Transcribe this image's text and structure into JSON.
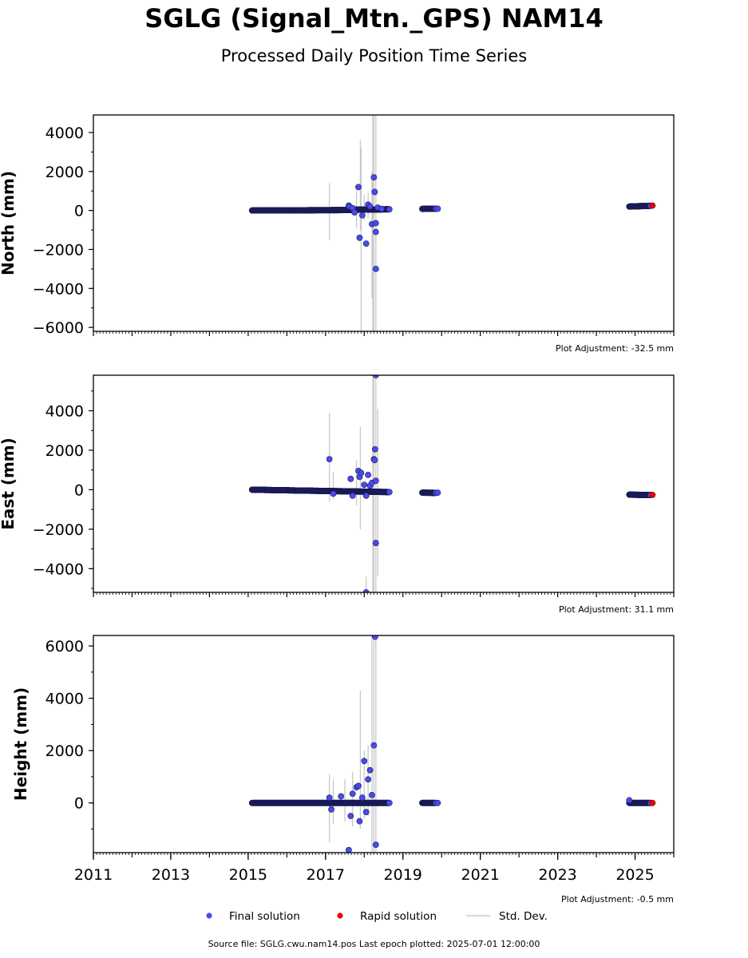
{
  "page": {
    "title": "SGLG (Signal_Mtn._GPS) NAM14",
    "subtitle": "Processed Daily Position Time Series",
    "footer": "Source file: SGLG.cwu.nam14.pos  Last epoch plotted: 2025-07-01 12:00:00"
  },
  "colors": {
    "final": "#4a4aee",
    "final_edge": "#1a1a55",
    "rapid": "#ee0000",
    "stddev": "#c8c8c8",
    "axis": "#000000"
  },
  "chart_data": [
    {
      "type": "scatter",
      "ylabel": "North (mm)",
      "adjustment": "Plot Adjustment: -32.5 mm",
      "xlim": [
        2011,
        2026
      ],
      "ylim": [
        -6200,
        4900
      ],
      "yticks": [
        4000,
        2000,
        0,
        -2000,
        -4000,
        -6000
      ],
      "ytick_labels": [
        "4000",
        "2000",
        "0",
        "−2000",
        "−4000",
        "−6000"
      ],
      "dense_segments": [
        {
          "x0": 2015.1,
          "x1": 2017.5,
          "y0": 0,
          "y1": 20
        },
        {
          "x0": 2017.5,
          "x1": 2018.65,
          "y0": 30,
          "y1": 60
        },
        {
          "x0": 2019.5,
          "x1": 2019.85,
          "y0": 80,
          "y1": 90
        },
        {
          "x0": 2024.85,
          "x1": 2025.4,
          "y0": 200,
          "y1": 240
        }
      ],
      "final_points": [
        [
          2017.6,
          250
        ],
        [
          2017.62,
          200
        ],
        [
          2017.7,
          120
        ],
        [
          2017.75,
          -100
        ],
        [
          2017.85,
          1200
        ],
        [
          2017.88,
          -1400
        ],
        [
          2017.95,
          -250
        ],
        [
          2018.05,
          -1700
        ],
        [
          2018.1,
          300
        ],
        [
          2018.15,
          200
        ],
        [
          2018.2,
          -700
        ],
        [
          2018.25,
          1700
        ],
        [
          2018.27,
          950
        ],
        [
          2018.3,
          -650
        ],
        [
          2018.3,
          -1100
        ],
        [
          2018.3,
          -3000
        ],
        [
          2018.35,
          150
        ],
        [
          2018.45,
          80
        ],
        [
          2019.9,
          90
        ]
      ],
      "rapid_points": [
        [
          2025.45,
          250
        ]
      ],
      "errorbars": [
        [
          2017.1,
          -1500,
          1400
        ],
        [
          2017.8,
          -900,
          1000
        ],
        [
          2017.9,
          -1000,
          3600
        ],
        [
          2017.92,
          -6200,
          3200
        ],
        [
          2018.0,
          -500,
          800
        ],
        [
          2018.1,
          -400,
          900
        ],
        [
          2018.22,
          -6200,
          4900
        ],
        [
          2018.25,
          -6200,
          4900
        ],
        [
          2018.3,
          -6200,
          4900
        ],
        [
          2018.2,
          -4500,
          2000
        ]
      ]
    },
    {
      "type": "scatter",
      "ylabel": "East (mm)",
      "adjustment": "Plot Adjustment: 31.1 mm",
      "xlim": [
        2011,
        2026
      ],
      "ylim": [
        -5200,
        5800
      ],
      "yticks": [
        4000,
        2000,
        0,
        -2000,
        -4000
      ],
      "ytick_labels": [
        "4000",
        "2000",
        "0",
        "−2000",
        "−4000"
      ],
      "dense_segments": [
        {
          "x0": 2015.1,
          "x1": 2016.0,
          "y0": 0,
          "y1": -30
        },
        {
          "x0": 2016.0,
          "x1": 2017.5,
          "y0": -30,
          "y1": -80
        },
        {
          "x0": 2017.5,
          "x1": 2018.65,
          "y0": -80,
          "y1": -120
        },
        {
          "x0": 2019.5,
          "x1": 2019.85,
          "y0": -150,
          "y1": -160
        },
        {
          "x0": 2024.85,
          "x1": 2025.4,
          "y0": -250,
          "y1": -270
        }
      ],
      "final_points": [
        [
          2017.1,
          1550
        ],
        [
          2017.2,
          -200
        ],
        [
          2017.65,
          550
        ],
        [
          2017.7,
          -300
        ],
        [
          2017.85,
          950
        ],
        [
          2017.88,
          650
        ],
        [
          2017.92,
          850
        ],
        [
          2018.0,
          250
        ],
        [
          2018.05,
          -300
        ],
        [
          2018.1,
          750
        ],
        [
          2018.15,
          200
        ],
        [
          2018.2,
          350
        ],
        [
          2018.25,
          1550
        ],
        [
          2018.27,
          1500
        ],
        [
          2018.28,
          2050
        ],
        [
          2018.3,
          5800
        ],
        [
          2018.3,
          450
        ],
        [
          2018.3,
          -2700
        ],
        [
          2018.05,
          -5200
        ],
        [
          2019.9,
          -150
        ]
      ],
      "rapid_points": [
        [
          2025.45,
          -260
        ]
      ],
      "errorbars": [
        [
          2017.1,
          -600,
          3900
        ],
        [
          2017.2,
          -500,
          900
        ],
        [
          2017.8,
          -800,
          1500
        ],
        [
          2017.9,
          -2000,
          3200
        ],
        [
          2018.05,
          -5200,
          -4400
        ],
        [
          2018.22,
          -5200,
          5800
        ],
        [
          2018.25,
          -5200,
          5800
        ],
        [
          2018.3,
          -5200,
          5800
        ],
        [
          2018.35,
          -4400,
          4100
        ]
      ]
    },
    {
      "type": "scatter",
      "ylabel": "Height (mm)",
      "adjustment": "Plot Adjustment: -0.5 mm",
      "xlim": [
        2011,
        2026
      ],
      "ylim": [
        -1900,
        6400
      ],
      "yticks": [
        6000,
        4000,
        2000,
        0
      ],
      "ytick_labels": [
        "6000",
        "4000",
        "2000",
        "0"
      ],
      "xticks": [
        2011,
        2013,
        2015,
        2017,
        2019,
        2021,
        2023,
        2025
      ],
      "xtick_labels": [
        "2011",
        "2013",
        "2015",
        "2017",
        "2019",
        "2021",
        "2023",
        "2025"
      ],
      "dense_segments": [
        {
          "x0": 2015.1,
          "x1": 2018.65,
          "y0": 0,
          "y1": 0
        },
        {
          "x0": 2019.5,
          "x1": 2019.85,
          "y0": 0,
          "y1": 0
        },
        {
          "x0": 2024.85,
          "x1": 2025.4,
          "y0": 0,
          "y1": 0
        }
      ],
      "final_points": [
        [
          2017.1,
          200
        ],
        [
          2017.15,
          -250
        ],
        [
          2017.4,
          250
        ],
        [
          2017.6,
          -1800
        ],
        [
          2017.65,
          -500
        ],
        [
          2017.7,
          350
        ],
        [
          2017.8,
          600
        ],
        [
          2017.85,
          650
        ],
        [
          2017.88,
          -700
        ],
        [
          2017.95,
          200
        ],
        [
          2018.0,
          1600
        ],
        [
          2018.05,
          -350
        ],
        [
          2018.1,
          900
        ],
        [
          2018.15,
          1250
        ],
        [
          2018.2,
          300
        ],
        [
          2018.25,
          2200
        ],
        [
          2018.28,
          6350
        ],
        [
          2018.3,
          -1600
        ],
        [
          2024.85,
          100
        ],
        [
          2019.9,
          0
        ]
      ],
      "rapid_points": [
        [
          2025.45,
          0
        ]
      ],
      "errorbars": [
        [
          2017.1,
          -1500,
          1100
        ],
        [
          2017.2,
          -800,
          900
        ],
        [
          2017.5,
          -700,
          900
        ],
        [
          2017.7,
          -900,
          1200
        ],
        [
          2017.9,
          -1000,
          4300
        ],
        [
          2018.0,
          -600,
          2000
        ],
        [
          2018.1,
          -500,
          2200
        ],
        [
          2018.2,
          -1900,
          6400
        ],
        [
          2018.25,
          -1900,
          6400
        ],
        [
          2018.3,
          -1900,
          6400
        ]
      ]
    }
  ],
  "legend": {
    "items": [
      {
        "label": "Final solution",
        "marker": "final"
      },
      {
        "label": "Rapid solution",
        "marker": "rapid"
      },
      {
        "label": "Std. Dev.",
        "marker": "line"
      }
    ]
  }
}
